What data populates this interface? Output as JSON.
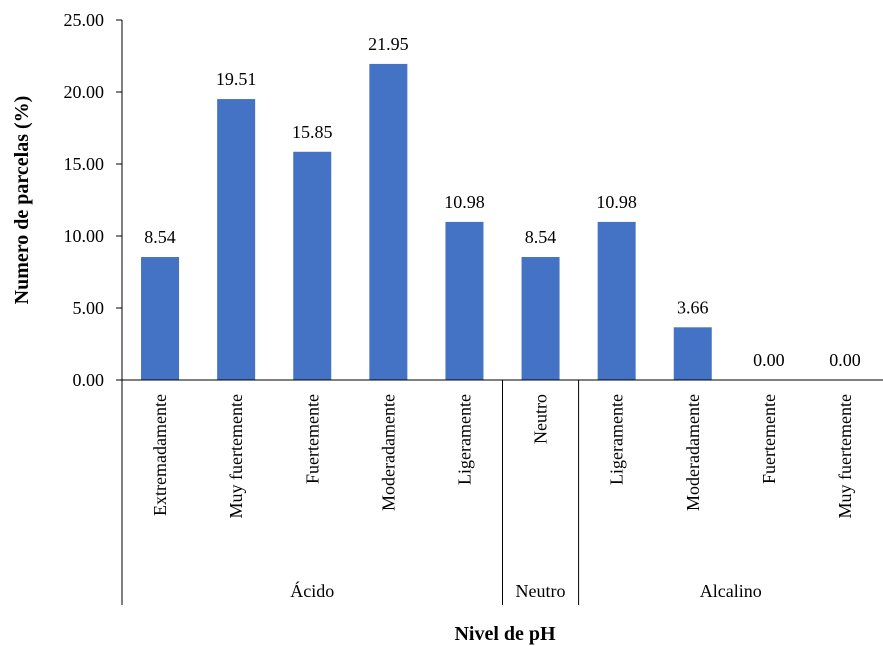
{
  "chart_data": {
    "type": "bar",
    "title": "",
    "xlabel": "Nivel de pH",
    "ylabel": "Numero de parcelas (%)",
    "ylim": [
      0,
      25
    ],
    "yticks": [
      "0.00",
      "5.00",
      "10.00",
      "15.00",
      "20.00",
      "25.00"
    ],
    "categories": [
      "Extremadamente",
      "Muy fuertemente",
      "Fuertemente",
      "Moderadamente",
      "Ligeramente",
      "Neutro",
      "Ligeramente",
      "Moderadamente",
      "Fuertemente",
      "Muy fuertemente"
    ],
    "values": [
      8.54,
      19.51,
      15.85,
      21.95,
      10.98,
      8.54,
      10.98,
      3.66,
      0.0,
      0.0
    ],
    "value_labels": [
      "8.54",
      "19.51",
      "15.85",
      "21.95",
      "10.98",
      "8.54",
      "10.98",
      "3.66",
      "0.00",
      "0.00"
    ],
    "groups": [
      {
        "label": "Ácido",
        "count": 5
      },
      {
        "label": "Neutro",
        "count": 1
      },
      {
        "label": "Alcalino",
        "count": 4
      }
    ],
    "bar_color": "#4472C4",
    "grid": false,
    "legend": "none"
  }
}
